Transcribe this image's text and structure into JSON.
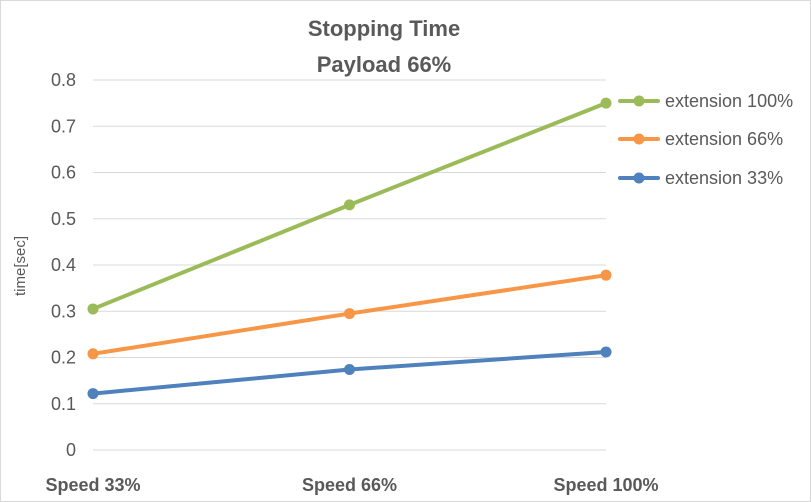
{
  "chart_data": {
    "type": "line",
    "title_lines": [
      "Stopping Time",
      "Payload 66%"
    ],
    "xlabel": "",
    "ylabel": "time[sec]",
    "categories": [
      "Speed 33%",
      "Speed 66%",
      "Speed 100%"
    ],
    "ylim": [
      0,
      0.8
    ],
    "yticks": [
      0,
      0.1,
      0.2,
      0.3,
      0.4,
      0.5,
      0.6,
      0.7,
      0.8
    ],
    "grid": true,
    "legend_position": "right",
    "series": [
      {
        "name": "extension 100%",
        "color": "#9bbb59",
        "values": [
          0.305,
          0.53,
          0.75
        ]
      },
      {
        "name": "extension 66%",
        "color": "#f79646",
        "values": [
          0.208,
          0.295,
          0.378
        ]
      },
      {
        "name": "extension 33%",
        "color": "#4f81bd",
        "values": [
          0.122,
          0.174,
          0.212
        ]
      }
    ]
  }
}
